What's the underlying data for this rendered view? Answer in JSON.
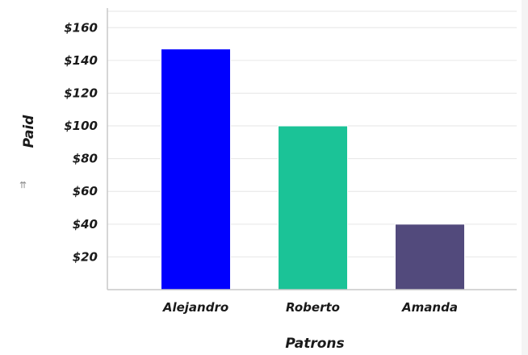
{
  "chart_data": {
    "type": "bar",
    "categories": [
      "Alejandro",
      "Roberto",
      "Amanda"
    ],
    "values": [
      147,
      100,
      40
    ],
    "colors": [
      "#0000ff",
      "#1bc397",
      "#524a7c"
    ],
    "xlabel": "Patrons",
    "ylabel": "Paid",
    "yticks": [
      20,
      40,
      60,
      80,
      100,
      120,
      140,
      160
    ],
    "ytick_labels": [
      "$20",
      "$40",
      "$60",
      "$80",
      "$100",
      "$120",
      "$140",
      "$160"
    ],
    "ylim": [
      0,
      170
    ],
    "grid": true,
    "legend": "none"
  },
  "icons": {
    "axis_control_icon": "sort-icon",
    "axis_control_glyph": "⇉"
  }
}
